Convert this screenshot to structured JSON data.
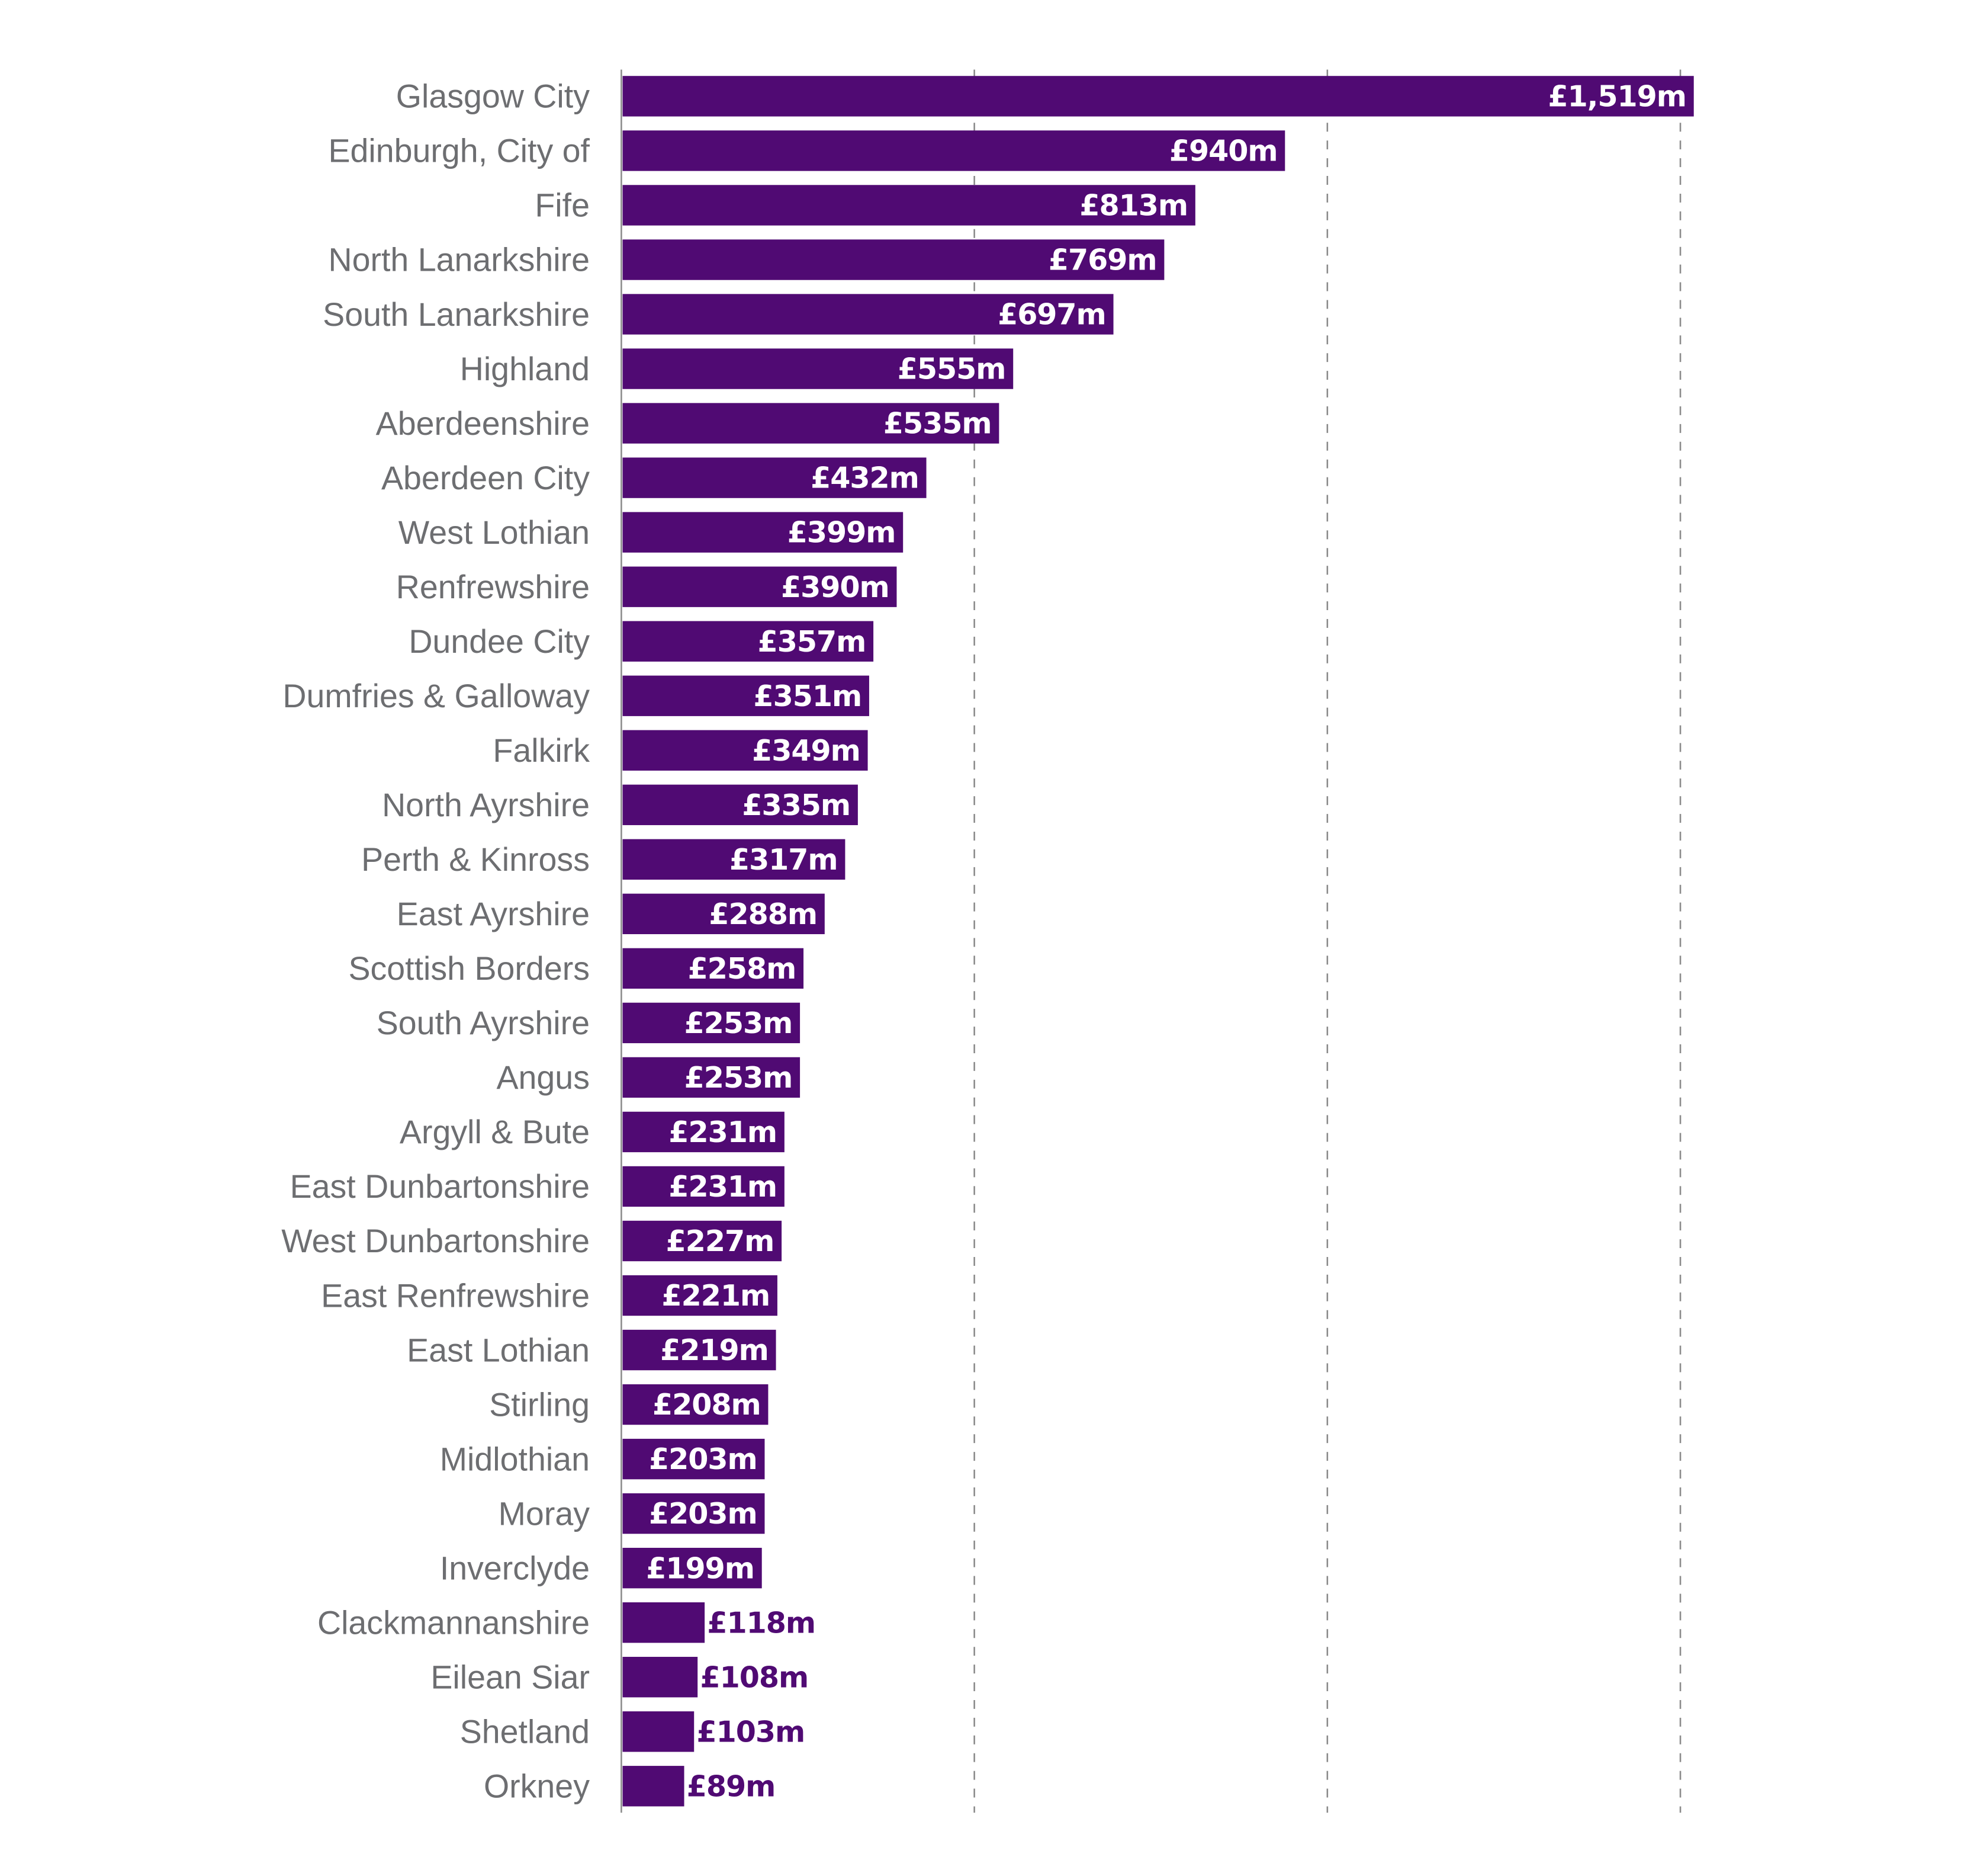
{
  "chart_data": {
    "type": "bar",
    "orientation": "horizontal",
    "categories": [
      "Glasgow City",
      "Edinburgh, City of",
      "Fife",
      "North Lanarkshire",
      "South Lanarkshire",
      "Highland",
      "Aberdeenshire",
      "Aberdeen City",
      "West Lothian",
      "Renfrewshire",
      "Dundee City",
      "Dumfries & Galloway",
      "Falkirk",
      "North Ayrshire",
      "Perth & Kinross",
      "East Ayrshire",
      "Scottish Borders",
      "South Ayrshire",
      "Angus",
      "Argyll & Bute",
      "East Dunbartonshire",
      "West Dunbartonshire",
      "East Renfrewshire",
      "East Lothian",
      "Stirling",
      "Midlothian",
      "Moray",
      "Inverclyde",
      "Clackmannanshire",
      "Eilean Siar",
      "Shetland",
      "Orkney"
    ],
    "values": [
      1519,
      940,
      813,
      769,
      697,
      555,
      535,
      432,
      399,
      390,
      357,
      351,
      349,
      335,
      317,
      288,
      258,
      253,
      253,
      231,
      231,
      227,
      221,
      219,
      208,
      203,
      203,
      199,
      118,
      108,
      103,
      89
    ],
    "data_labels": [
      "£1,519m",
      "£940m",
      "£813m",
      "£769m",
      "£697m",
      "£555m",
      "£535m",
      "£432m",
      "£399m",
      "£390m",
      "£357m",
      "£351m",
      "£349m",
      "£335m",
      "£317m",
      "£288m",
      "£258m",
      "£253m",
      "£253m",
      "£231m",
      "£231m",
      "£227m",
      "£221m",
      "£219m",
      "£208m",
      "£203m",
      "£203m",
      "£199m",
      "£118m",
      "£108m",
      "£103m",
      "£89m"
    ],
    "unit": "£m",
    "xlim": [
      0,
      1500
    ],
    "gridlines": [
      0,
      500,
      1000,
      1500
    ],
    "grid": true,
    "grid_style": "dashed vertical",
    "title": "",
    "xlabel": "",
    "ylabel": "",
    "colors": {
      "bar": "#500a73",
      "category_text": "#6d6e71",
      "grid": "#8a8a8a",
      "label_inside": "#ffffff",
      "label_outside": "#500a73"
    }
  }
}
